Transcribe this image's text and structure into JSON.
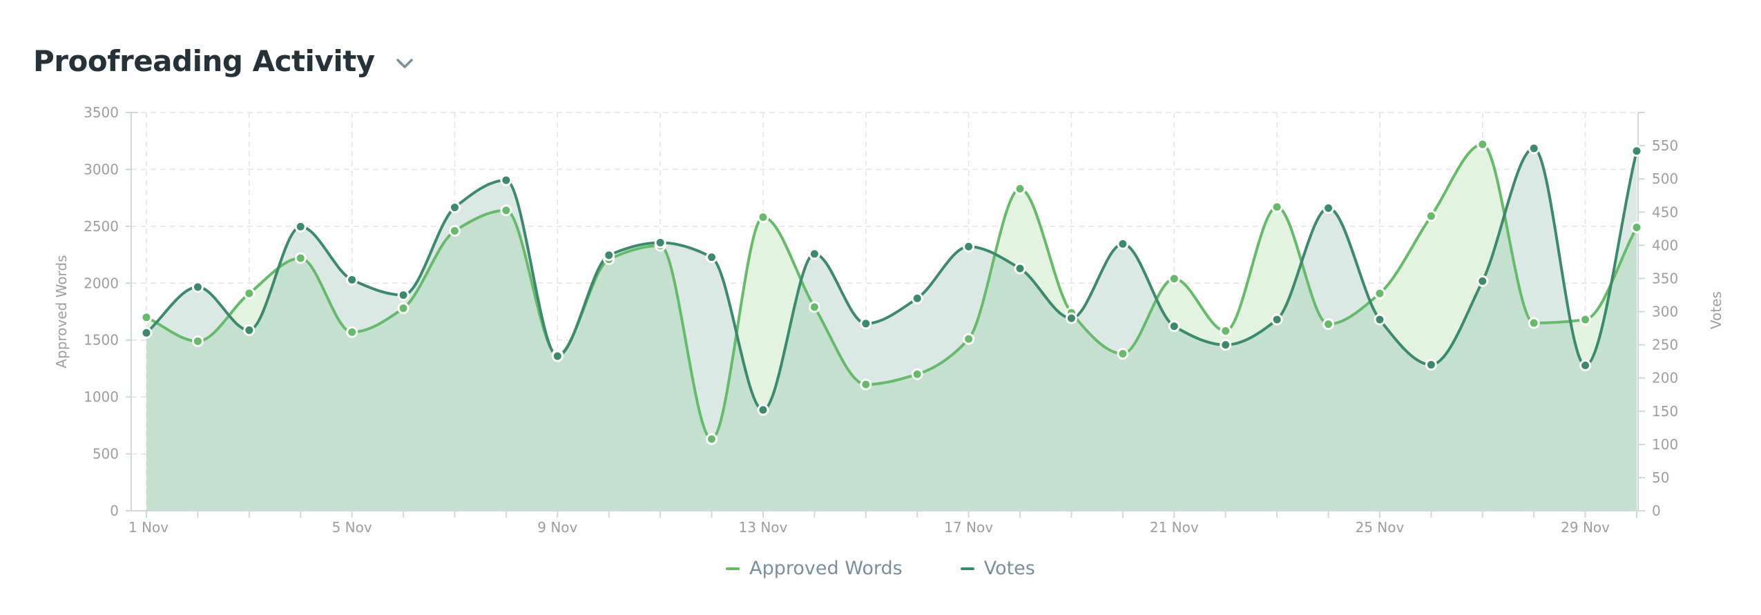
{
  "title": "Proofreading Activity",
  "dropdown_icon": "chevron-down-icon",
  "colors": {
    "approved": "#66bb6a",
    "approved_fill": "#e2f3df",
    "votes": "#3c8a6c",
    "votes_fill": "#dbe9e4",
    "overlap_fill": "#c4e1cf",
    "grid": "#e3e3e3",
    "axis_text": "#9e9e9e",
    "title": "#263238"
  },
  "chart_data": {
    "type": "area",
    "x": [
      "1 Nov",
      "2 Nov",
      "3 Nov",
      "4 Nov",
      "5 Nov",
      "6 Nov",
      "7 Nov",
      "8 Nov",
      "9 Nov",
      "10 Nov",
      "11 Nov",
      "12 Nov",
      "13 Nov",
      "14 Nov",
      "15 Nov",
      "16 Nov",
      "17 Nov",
      "18 Nov",
      "19 Nov",
      "20 Nov",
      "21 Nov",
      "22 Nov",
      "23 Nov",
      "24 Nov",
      "25 Nov",
      "26 Nov",
      "27 Nov",
      "28 Nov",
      "29 Nov",
      "30 Nov"
    ],
    "x_tick_labels": [
      "1 Nov",
      "5 Nov",
      "9 Nov",
      "13 Nov",
      "17 Nov",
      "21 Nov",
      "25 Nov",
      "29 Nov"
    ],
    "series": [
      {
        "name": "Approved Words",
        "axis": "left",
        "values": [
          1700,
          1490,
          1910,
          2220,
          1570,
          1780,
          2460,
          2640,
          1370,
          2210,
          2330,
          630,
          2580,
          1790,
          1110,
          1200,
          1510,
          2830,
          1740,
          1380,
          2040,
          1580,
          2670,
          1640,
          1910,
          2590,
          3220,
          1650,
          1680,
          2490
        ]
      },
      {
        "name": "Votes",
        "axis": "right",
        "values": [
          268,
          337,
          272,
          428,
          348,
          325,
          457,
          498,
          233,
          385,
          404,
          382,
          152,
          387,
          282,
          320,
          398,
          365,
          290,
          402,
          278,
          250,
          288,
          456,
          288,
          220,
          346,
          546,
          219,
          542
        ]
      }
    ],
    "ylabel": "Approved Words",
    "y2label": "Votes",
    "ylim": [
      0,
      3500
    ],
    "y2lim": [
      0,
      600
    ],
    "yticks": [
      0,
      500,
      1000,
      1500,
      2000,
      2500,
      3000,
      3500
    ],
    "y2ticks": [
      0,
      50,
      100,
      150,
      200,
      250,
      300,
      350,
      400,
      450,
      500,
      550
    ],
    "grid": true,
    "legend_position": "bottom"
  }
}
